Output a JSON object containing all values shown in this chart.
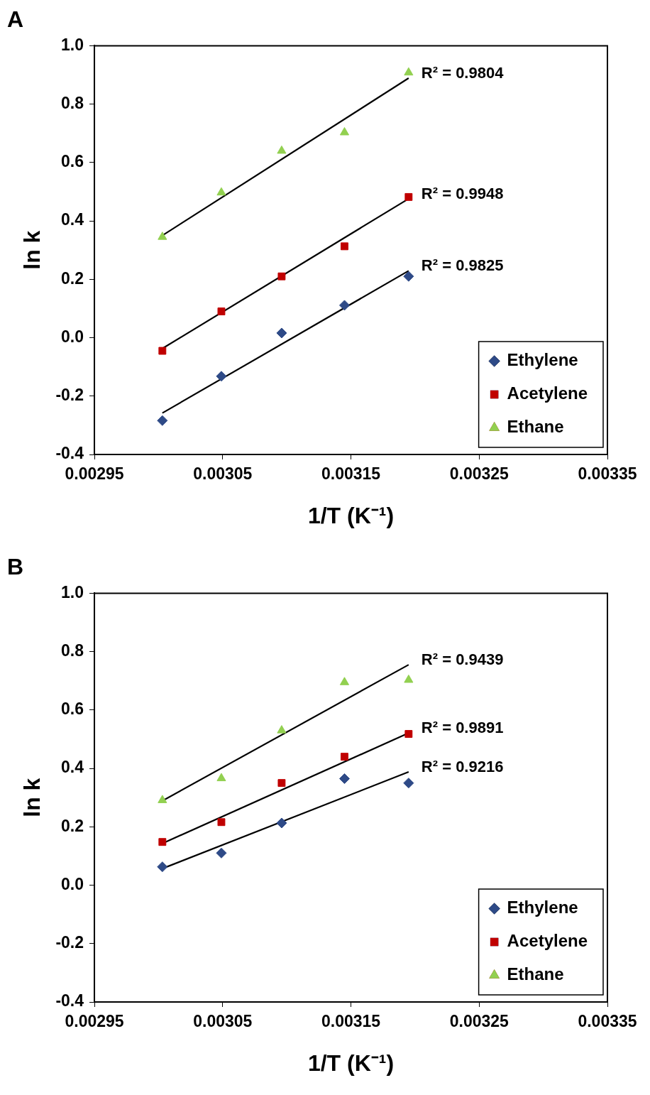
{
  "chart_data": [
    {
      "type": "scatter",
      "title": "A",
      "xlabel": "1/T (K⁻¹)",
      "ylabel": "ln k",
      "xlim": [
        0.00295,
        0.00335
      ],
      "xticks": [
        0.00295,
        0.00305,
        0.00315,
        0.00325,
        0.00335
      ],
      "ylim": [
        -0.4,
        1.0
      ],
      "yticks": [
        {
          "value": -0.4,
          "label": "-0.4"
        },
        {
          "value": -0.2,
          "label": "-0.2"
        },
        {
          "value": 0,
          "label": "0.0"
        },
        {
          "value": 0.2,
          "label": "0.2"
        },
        {
          "value": 0.4,
          "label": "0.4"
        },
        {
          "value": 0.6,
          "label": "0.6"
        },
        {
          "value": 0.8,
          "label": "0.8"
        },
        {
          "value": 1.0,
          "label": "1.0"
        }
      ],
      "legend": "bottom right",
      "grid": false,
      "series": [
        {
          "name": "Ethylene",
          "color": "#2e4a87",
          "marker": "diamond",
          "x": [
            0.003003,
            0.003049,
            0.003096,
            0.003145,
            0.003195
          ],
          "values": [
            -0.284,
            -0.132,
            0.016,
            0.111,
            0.21
          ]
        },
        {
          "name": "Acetylene",
          "color": "#c00000",
          "marker": "square",
          "x": [
            0.003003,
            0.003049,
            0.003096,
            0.003145,
            0.003195
          ],
          "values": [
            -0.045,
            0.09,
            0.21,
            0.313,
            0.482
          ]
        },
        {
          "name": "Ethane",
          "color": "#92d050",
          "marker": "triangle",
          "x": [
            0.003003,
            0.003049,
            0.003096,
            0.003145,
            0.003195
          ],
          "values": [
            0.345,
            0.497,
            0.64,
            0.703,
            0.908
          ]
        },
        {
          "type": "line",
          "color": "#000000",
          "marker": "none",
          "x": [
            0.003003,
            0.003195
          ],
          "values": [
            -0.258,
            0.229
          ]
        },
        {
          "type": "line",
          "color": "#000000",
          "marker": "none",
          "x": [
            0.003003,
            0.003195
          ],
          "values": [
            -0.037,
            0.476
          ]
        },
        {
          "type": "line",
          "color": "#000000",
          "marker": "none",
          "x": [
            0.003003,
            0.003195
          ],
          "values": [
            0.35,
            0.889
          ]
        }
      ],
      "annotations": [
        "R² = 0.9804",
        "R² = 0.9948",
        "R² = 0.9825"
      ]
    },
    {
      "type": "scatter",
      "title": "B",
      "xlabel": "1/T (K⁻¹)",
      "ylabel": "ln k",
      "xlim": [
        0.00295,
        0.00335
      ],
      "xticks": [
        0.00295,
        0.00305,
        0.00315,
        0.00325,
        0.00335
      ],
      "ylim": [
        -0.4,
        1.0
      ],
      "yticks": [
        {
          "value": -0.4,
          "label": "-0.4"
        },
        {
          "value": -0.2,
          "label": "-0.2"
        },
        {
          "value": 0,
          "label": "0.0"
        },
        {
          "value": 0.2,
          "label": "0.2"
        },
        {
          "value": 0.4,
          "label": "0.4"
        },
        {
          "value": 0.6,
          "label": "0.6"
        },
        {
          "value": 0.8,
          "label": "0.8"
        },
        {
          "value": 1.0,
          "label": "1.0"
        }
      ],
      "legend": "bottom right",
      "grid": false,
      "series": [
        {
          "name": "Ethylene",
          "color": "#2e4a87",
          "marker": "diamond",
          "x": [
            0.003003,
            0.003049,
            0.003096,
            0.003145,
            0.003195
          ],
          "values": [
            0.063,
            0.11,
            0.213,
            0.365,
            0.35
          ]
        },
        {
          "name": "Acetylene",
          "color": "#c00000",
          "marker": "square",
          "x": [
            0.003003,
            0.003049,
            0.003096,
            0.003145,
            0.003195
          ],
          "values": [
            0.148,
            0.216,
            0.35,
            0.44,
            0.518
          ]
        },
        {
          "name": "Ethane",
          "color": "#92d050",
          "marker": "triangle",
          "x": [
            0.003003,
            0.003049,
            0.003096,
            0.003145,
            0.003195
          ],
          "values": [
            0.291,
            0.366,
            0.53,
            0.695,
            0.703
          ]
        },
        {
          "type": "line",
          "color": "#000000",
          "marker": "none",
          "x": [
            0.003003,
            0.003195
          ],
          "values": [
            0.057,
            0.388
          ]
        },
        {
          "type": "line",
          "color": "#000000",
          "marker": "none",
          "x": [
            0.003003,
            0.003195
          ],
          "values": [
            0.143,
            0.521
          ]
        },
        {
          "type": "line",
          "color": "#000000",
          "marker": "none",
          "x": [
            0.003003,
            0.003195
          ],
          "values": [
            0.289,
            0.755
          ]
        }
      ],
      "annotations": [
        "R² = 0.9439",
        "R² = 0.9891",
        "R² = 0.9216"
      ]
    }
  ]
}
